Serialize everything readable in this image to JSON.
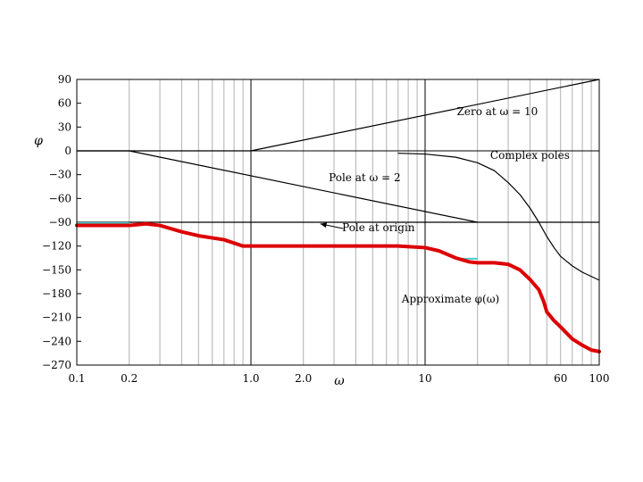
{
  "chart_data": {
    "type": "line",
    "xscale": "log",
    "xlim": [
      0.1,
      100
    ],
    "ylim": [
      -270,
      90
    ],
    "xlabel": "ω",
    "ylabel": "φ",
    "x_ticks": [
      0.1,
      0.2,
      1.0,
      2.0,
      10,
      60,
      100
    ],
    "x_tick_labels": [
      "0.1",
      "0.2",
      "1.0",
      "2.0",
      "10",
      "60",
      "100"
    ],
    "y_ticks": [
      90,
      60,
      30,
      0,
      -30,
      -60,
      -90,
      -120,
      -150,
      -180,
      -210,
      -240,
      -270
    ],
    "y_tick_labels": [
      "90",
      "60",
      "30",
      "0",
      "−30",
      "−60",
      "−90",
      "−120",
      "−150",
      "−180",
      "−210",
      "−240",
      "−270"
    ],
    "grid": true,
    "colors": {
      "approximate": "#dd0000",
      "components": "#000000",
      "accent": "#44cccc"
    },
    "series": [
      {
        "name": "Zero at ω = 10",
        "x": [
          0.1,
          1.0,
          100
        ],
        "y": [
          0,
          0,
          90
        ]
      },
      {
        "name": "Pole at ω = 2",
        "x": [
          0.1,
          0.2,
          20
        ],
        "y": [
          0,
          0,
          -90
        ]
      },
      {
        "name": "Complex poles",
        "x": [
          7,
          10,
          15,
          20,
          25,
          30,
          35,
          40,
          45,
          50,
          55,
          60,
          70,
          80,
          100
        ],
        "y": [
          -3,
          -4,
          -8,
          -15,
          -25,
          -40,
          -55,
          -72,
          -90,
          -108,
          -122,
          -133,
          -145,
          -153,
          -163
        ]
      },
      {
        "name": "Pole at origin",
        "x": [
          0.1,
          100
        ],
        "y": [
          -90,
          -90
        ]
      },
      {
        "name": "Approximate φ(ω)",
        "x": [
          0.1,
          0.2,
          0.25,
          0.3,
          0.4,
          0.5,
          0.7,
          0.9,
          1.0,
          2,
          5,
          7,
          10,
          12,
          15,
          18,
          20,
          25,
          30,
          35,
          40,
          45,
          48,
          50,
          55,
          60,
          70,
          80,
          90,
          100
        ],
        "y": [
          -94,
          -94,
          -92,
          -94,
          -102,
          -107,
          -112,
          -120,
          -120,
          -120,
          -120,
          -120,
          -122,
          -126,
          -135,
          -140,
          -141,
          -141,
          -143,
          -150,
          -162,
          -175,
          -190,
          -203,
          -214,
          -222,
          -237,
          -245,
          -251,
          -253
        ]
      }
    ],
    "annotations": [
      {
        "text": "Zero at ω = 10",
        "x": 26,
        "y": 45
      },
      {
        "text": "Complex poles",
        "x": 40,
        "y": -10
      },
      {
        "text": "Pole at ω = 2",
        "x": 4.5,
        "y": -38
      },
      {
        "text": "Pole at origin",
        "x": 5.4,
        "y": -101
      },
      {
        "text": "Approximate φ(ω)",
        "x": 14,
        "y": -191
      }
    ],
    "pole_origin_arrow": {
      "from": [
        3.4,
        -98
      ],
      "to": [
        2.5,
        -92
      ]
    }
  }
}
